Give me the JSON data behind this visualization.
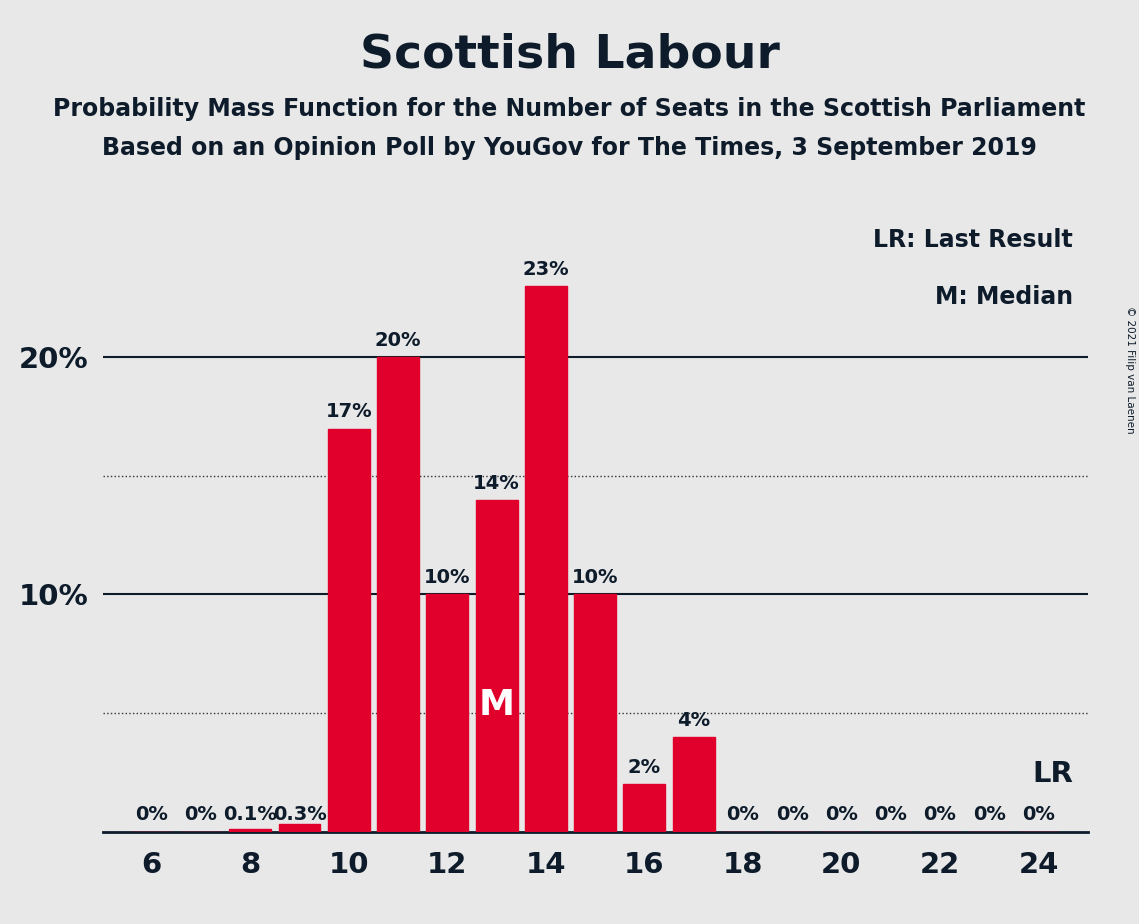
{
  "title": "Scottish Labour",
  "subtitle1": "Probability Mass Function for the Number of Seats in the Scottish Parliament",
  "subtitle2": "Based on an Opinion Poll by YouGov for The Times, 3 September 2019",
  "copyright": "© 2021 Filip van Laenen",
  "bar_color": "#E0002B",
  "background_color": "#E8E8E8",
  "seats": [
    6,
    7,
    8,
    9,
    10,
    11,
    12,
    13,
    14,
    15,
    16,
    17,
    18,
    19,
    20,
    21,
    22,
    23,
    24
  ],
  "probabilities": [
    0.0,
    0.0,
    0.001,
    0.003,
    0.17,
    0.2,
    0.1,
    0.14,
    0.23,
    0.1,
    0.02,
    0.04,
    0.0,
    0.0,
    0.0,
    0.0,
    0.0,
    0.0,
    0.0
  ],
  "labels": [
    "0%",
    "0%",
    "0.1%",
    "0.3%",
    "17%",
    "20%",
    "10%",
    "14%",
    "23%",
    "10%",
    "2%",
    "4%",
    "0%",
    "0%",
    "0%",
    "0%",
    "0%",
    "0%",
    "0%"
  ],
  "median_seat": 13,
  "xlim": [
    5.0,
    25.0
  ],
  "ylim": [
    0.0,
    0.265
  ],
  "yticks": [
    0.1,
    0.2
  ],
  "ytick_labels": [
    "10%",
    "20%"
  ],
  "dotted_yticks": [
    0.05,
    0.15
  ],
  "xticks": [
    6,
    8,
    10,
    12,
    14,
    16,
    18,
    20,
    22,
    24
  ],
  "legend_lr": "LR: Last Result",
  "legend_m": "M: Median",
  "lr_label": "LR",
  "m_label": "M",
  "title_fontsize": 34,
  "subtitle_fontsize": 17,
  "axis_tick_fontsize": 21,
  "bar_label_fontsize": 14,
  "legend_fontsize": 17,
  "lr_fontsize": 21,
  "copyright_fontsize": 7.5,
  "text_color": "#0D1B2A"
}
